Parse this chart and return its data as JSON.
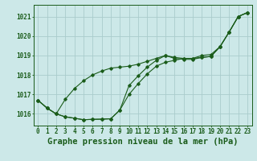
{
  "title": "Graphe pression niveau de la mer (hPa)",
  "xlabel_hours": [
    0,
    1,
    2,
    3,
    4,
    5,
    6,
    7,
    8,
    9,
    10,
    11,
    12,
    13,
    14,
    15,
    16,
    17,
    18,
    19,
    20,
    21,
    22,
    23
  ],
  "ylim": [
    1015.4,
    1021.6
  ],
  "yticks": [
    1016,
    1017,
    1018,
    1019,
    1020,
    1021
  ],
  "background_color": "#cce8e8",
  "grid_color": "#aacccc",
  "line_color": "#1a5c1a",
  "series1": [
    1016.7,
    1016.3,
    1016.0,
    1015.85,
    1015.78,
    1015.7,
    1015.72,
    1015.73,
    1015.75,
    1016.2,
    1017.0,
    1017.55,
    1018.05,
    1018.45,
    1018.65,
    1018.75,
    1018.85,
    1018.85,
    1018.9,
    1018.95,
    1019.45,
    1020.2,
    1021.0,
    1021.2
  ],
  "series2": [
    1016.7,
    1016.3,
    1016.0,
    1015.85,
    1015.78,
    1015.7,
    1015.72,
    1015.73,
    1015.75,
    1016.2,
    1017.45,
    1017.95,
    1018.4,
    1018.75,
    1019.0,
    1018.85,
    1018.8,
    1018.8,
    1018.9,
    1018.95,
    1019.45,
    1020.2,
    1021.0,
    1021.2
  ],
  "series3": [
    1016.7,
    1016.3,
    1016.0,
    1016.75,
    1017.3,
    1017.7,
    1018.0,
    1018.2,
    1018.35,
    1018.4,
    1018.45,
    1018.55,
    1018.7,
    1018.85,
    1019.0,
    1018.9,
    1018.85,
    1018.85,
    1019.0,
    1019.05,
    1019.45,
    1020.2,
    1021.0,
    1021.2
  ],
  "title_fontsize": 7.5,
  "tick_fontsize": 5.5
}
